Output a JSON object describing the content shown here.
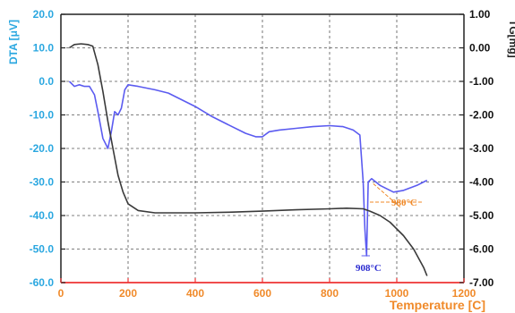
{
  "chart_data": {
    "type": "line",
    "xlabel": "Temperature [C]",
    "ylabel_left": "DTA [μV]",
    "ylabel_right": "TG[mg]",
    "xlim": [
      0,
      1200
    ],
    "ylim_left": [
      -60,
      20
    ],
    "ylim_right": [
      -7,
      1
    ],
    "x_ticks": [
      0,
      200,
      400,
      600,
      800,
      1000,
      1200
    ],
    "y_left_ticks": [
      "20.0",
      "10.0",
      "0.0",
      "-10.0",
      "-20.0",
      "-30.0",
      "-40.0",
      "-50.0",
      "-60.0"
    ],
    "y_right_ticks": [
      "1.00",
      "0.00",
      "-1.00",
      "-2.00",
      "-3.00",
      "-4.00",
      "-5.00",
      "-6.00",
      "-7.00"
    ],
    "grid": true,
    "colors": {
      "dta": "#5b5bf0",
      "tg": "#3a3a3a",
      "x_axis": "#ee3333",
      "x_label": "#f08a2a",
      "dta_label": "#2aa7e0",
      "anno_908": "#2a2ad0",
      "anno_980": "#f08a2a"
    },
    "series": [
      {
        "name": "DTA",
        "axis": "left",
        "x": [
          25,
          40,
          55,
          70,
          85,
          100,
          110,
          125,
          140,
          150,
          160,
          170,
          180,
          190,
          200,
          230,
          280,
          320,
          360,
          400,
          450,
          500,
          550,
          580,
          600,
          620,
          650,
          700,
          750,
          800,
          840,
          870,
          890,
          900,
          905,
          910,
          915,
          925,
          950,
          990,
          1020,
          1060,
          1080,
          1090
        ],
        "y": [
          0,
          -1.5,
          -1.0,
          -1.5,
          -1.5,
          -4.0,
          -9.0,
          -17.0,
          -20.0,
          -15.0,
          -9.0,
          -10.0,
          -8.0,
          -2.5,
          -1.0,
          -1.5,
          -2.5,
          -3.5,
          -5.5,
          -7.5,
          -10.5,
          -13.0,
          -15.5,
          -16.5,
          -16.5,
          -15.0,
          -14.5,
          -14.0,
          -13.5,
          -13.2,
          -13.5,
          -14.5,
          -16.0,
          -30.0,
          -44.0,
          -52.0,
          -30.0,
          -29.0,
          -31.0,
          -33.0,
          -32.5,
          -31.0,
          -30.0,
          -29.5
        ]
      },
      {
        "name": "TG",
        "axis": "right",
        "x": [
          25,
          40,
          60,
          80,
          95,
          110,
          125,
          140,
          155,
          170,
          185,
          200,
          230,
          280,
          330,
          400,
          500,
          600,
          700,
          800,
          850,
          900,
          920,
          950,
          980,
          1000,
          1020,
          1050,
          1080,
          1090
        ],
        "y": [
          0.0,
          0.1,
          0.12,
          0.1,
          0.05,
          -0.5,
          -1.3,
          -2.2,
          -3.0,
          -3.8,
          -4.3,
          -4.65,
          -4.85,
          -4.92,
          -4.92,
          -4.92,
          -4.9,
          -4.87,
          -4.83,
          -4.8,
          -4.78,
          -4.8,
          -4.87,
          -5.0,
          -5.2,
          -5.4,
          -5.6,
          -6.0,
          -6.55,
          -6.8
        ]
      }
    ],
    "annotations": [
      "908°C",
      "980°C"
    ]
  }
}
